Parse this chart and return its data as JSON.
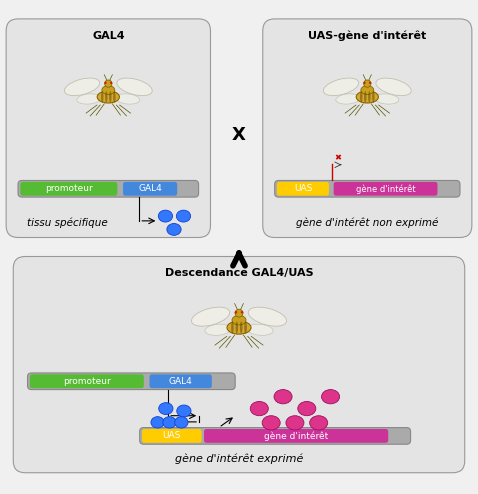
{
  "bg_color": "#f0f0f0",
  "panel_bg": "#e4e4e4",
  "chromosome_color": "#aaaaaa",
  "promoteur_color": "#55bb33",
  "gal4_color": "#4488dd",
  "uas_color": "#ffcc00",
  "gene_interet_color": "#cc3399",
  "blue_dot_color": "#3377ff",
  "pink_dot_color": "#dd3388",
  "title_top_left": "GAL4",
  "title_top_right": "UAS-gène d'intérêt",
  "label_tissu": "tissu spécifique",
  "label_gene_non": "gène d'intérêt non exprimé",
  "title_bottom": "Descendance GAL4/UAS",
  "label_gene_exp": "gène d'intérêt exprimé",
  "x_label": "X"
}
